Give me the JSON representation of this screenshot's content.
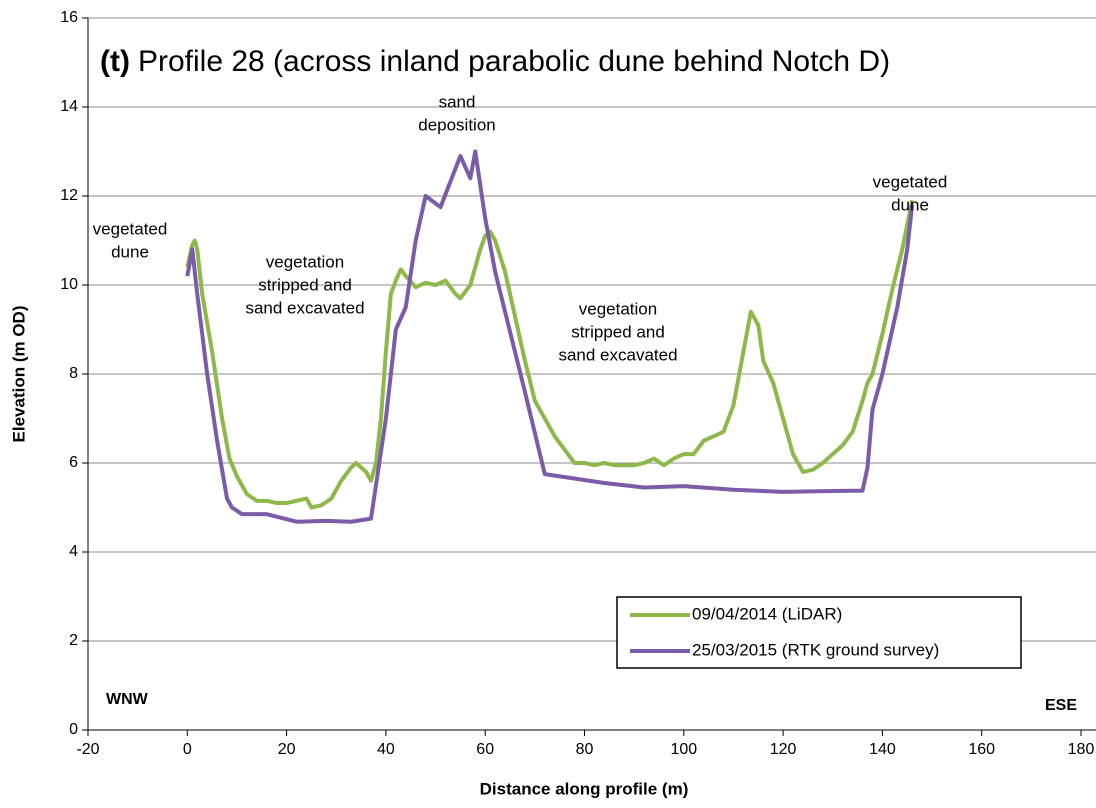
{
  "chart_data": {
    "type": "line",
    "title_label": "(t)",
    "title": "Profile 28 (across inland parabolic dune behind Notch D)",
    "xlabel": "Distance along profile (m)",
    "ylabel": "Elevation (m OD)",
    "xlim": [
      -20,
      180
    ],
    "xticks": [
      -20,
      0,
      20,
      40,
      60,
      80,
      100,
      120,
      140,
      160,
      180
    ],
    "ylim": [
      0,
      16
    ],
    "yticks": [
      0,
      2,
      4,
      6,
      8,
      10,
      12,
      14,
      16
    ],
    "grid": true,
    "legend": "lower right",
    "direction_labels": [
      "WNW",
      "ESE"
    ],
    "annotations": [
      [
        "vegetated",
        "dune"
      ],
      [
        "vegetation",
        "stripped  and",
        "sand excavated"
      ],
      [
        "sand",
        "deposition"
      ],
      [
        "vegetation",
        "stripped  and",
        "sand excavated"
      ],
      [
        "vegetated",
        "dune"
      ]
    ],
    "series": [
      {
        "name": "09/04/2014 (LiDAR)",
        "color": "#8db84a",
        "x": [
          0,
          1,
          1.5,
          2,
          3,
          5,
          7,
          8.5,
          10,
          12,
          14,
          16,
          18,
          20,
          22,
          24,
          25,
          27,
          29,
          31,
          33,
          34,
          36,
          37,
          38,
          39,
          40,
          41,
          42,
          43,
          44,
          46,
          48,
          50,
          52,
          54,
          55,
          57,
          59,
          60,
          61,
          62,
          64,
          66,
          68,
          70,
          72,
          74,
          76,
          78,
          80,
          82,
          84,
          86,
          88,
          90,
          92,
          94,
          96,
          98,
          100,
          102,
          104,
          106,
          108,
          110,
          112,
          113.5,
          115,
          116,
          118,
          120,
          122,
          124,
          126,
          128,
          130,
          132,
          134,
          136,
          137,
          138,
          140,
          142,
          144,
          146
        ],
        "values": [
          10.4,
          10.9,
          11.0,
          10.8,
          9.8,
          8.5,
          7.0,
          6.1,
          5.7,
          5.3,
          5.15,
          5.15,
          5.1,
          5.1,
          5.15,
          5.2,
          5.0,
          5.05,
          5.2,
          5.6,
          5.9,
          6.0,
          5.8,
          5.6,
          6.0,
          7.0,
          8.5,
          9.8,
          10.1,
          10.35,
          10.2,
          9.95,
          10.05,
          10.0,
          10.1,
          9.8,
          9.7,
          10.0,
          10.8,
          11.1,
          11.2,
          11.0,
          10.3,
          9.3,
          8.3,
          7.4,
          7.0,
          6.6,
          6.3,
          6.0,
          6.0,
          5.95,
          6.0,
          5.95,
          5.95,
          5.95,
          6.0,
          6.1,
          5.95,
          6.1,
          6.2,
          6.2,
          6.5,
          6.6,
          6.7,
          7.3,
          8.5,
          9.4,
          9.1,
          8.3,
          7.8,
          7.0,
          6.2,
          5.8,
          5.85,
          6.0,
          6.2,
          6.4,
          6.7,
          7.4,
          7.8,
          8.0,
          8.9,
          9.9,
          10.8,
          11.9
        ]
      },
      {
        "name": "25/03/2015 (RTK ground survey)",
        "color": "#7b5ca8",
        "x": [
          0,
          1,
          2,
          4,
          6,
          8,
          9,
          11,
          16,
          22,
          28,
          33,
          37,
          40,
          42,
          44,
          46,
          48,
          51,
          55,
          57,
          58,
          60,
          62,
          64,
          68,
          72,
          84,
          92,
          100,
          110,
          120,
          130,
          136,
          137,
          138,
          140,
          143,
          145,
          146
        ],
        "values": [
          10.2,
          10.8,
          9.8,
          8.0,
          6.5,
          5.2,
          5.0,
          4.85,
          4.85,
          4.68,
          4.7,
          4.68,
          4.75,
          7.0,
          9.0,
          9.5,
          11.0,
          12.0,
          11.75,
          12.9,
          12.4,
          13.0,
          11.5,
          10.3,
          9.4,
          7.6,
          5.75,
          5.55,
          5.45,
          5.48,
          5.4,
          5.35,
          5.37,
          5.38,
          5.9,
          7.2,
          8.0,
          9.5,
          10.8,
          11.8
        ]
      }
    ]
  }
}
